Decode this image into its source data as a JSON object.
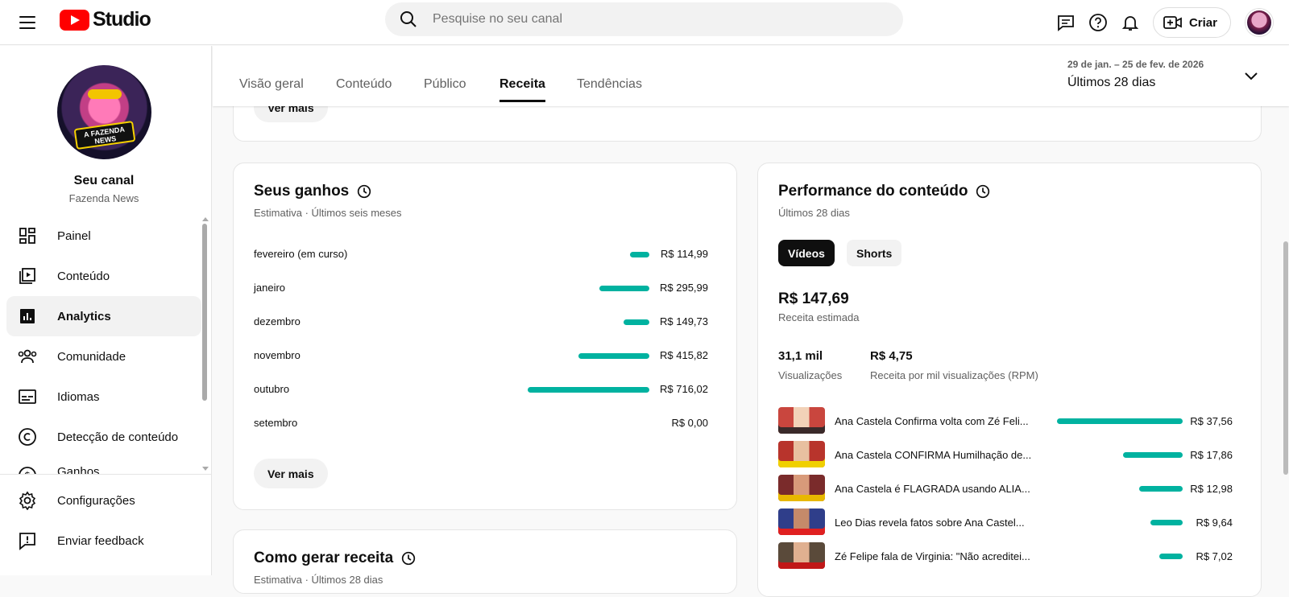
{
  "header": {
    "logo_text": "Studio",
    "search_placeholder": "Pesquise no seu canal",
    "create_label": "Criar",
    "icons": [
      "menu-icon",
      "youtube-logo-icon",
      "search-icon",
      "feedback-chat-icon",
      "help-icon",
      "notifications-icon",
      "create-video-icon"
    ]
  },
  "sidebar": {
    "channel_name": "Seu canal",
    "channel_handle": "Fazenda News",
    "avatar_text": "A FAZENDA NEWS",
    "items": [
      {
        "label": "Painel",
        "icon": "dashboard-icon"
      },
      {
        "label": "Conteúdo",
        "icon": "content-icon"
      },
      {
        "label": "Analytics",
        "icon": "analytics-icon",
        "active": true
      },
      {
        "label": "Comunidade",
        "icon": "community-icon"
      },
      {
        "label": "Idiomas",
        "icon": "subtitles-icon"
      },
      {
        "label": "Detecção de conteúdo",
        "icon": "copyright-icon"
      },
      {
        "label": "Ganhos",
        "icon": "earn-icon"
      }
    ],
    "bottom_items": [
      {
        "label": "Configurações",
        "icon": "settings-icon"
      },
      {
        "label": "Enviar feedback",
        "icon": "feedback-icon"
      }
    ]
  },
  "tabs": {
    "items": [
      "Visão geral",
      "Conteúdo",
      "Público",
      "Receita",
      "Tendências"
    ],
    "active": "Receita"
  },
  "date_range": {
    "range": "29 de jan. – 25 de fev. de 2026",
    "label": "Últimos 28 dias"
  },
  "top_card": {
    "button": "Ver mais"
  },
  "earnings": {
    "title": "Seus ganhos",
    "subtitle": "Estimativa · Últimos seis meses",
    "rows": [
      {
        "month": "fevereiro (em curso)",
        "value_text": "R$ 114,99",
        "value": 114.99
      },
      {
        "month": "janeiro",
        "value_text": "R$ 295,99",
        "value": 295.99
      },
      {
        "month": "dezembro",
        "value_text": "R$ 149,73",
        "value": 149.73
      },
      {
        "month": "novembro",
        "value_text": "R$ 415,82",
        "value": 415.82
      },
      {
        "month": "outubro",
        "value_text": "R$ 716,02",
        "value": 716.02
      },
      {
        "month": "setembro",
        "value_text": "R$ 0,00",
        "value": 0
      }
    ],
    "button": "Ver mais"
  },
  "how_to": {
    "title": "Como gerar receita",
    "subtitle": "Estimativa · Últimos 28 dias"
  },
  "performance": {
    "title": "Performance do conteúdo",
    "subtitle": "Últimos 28 dias",
    "toggle": [
      "Vídeos",
      "Shorts"
    ],
    "active_toggle": "Vídeos",
    "revenue": "R$ 147,69",
    "revenue_label": "Receita estimada",
    "views": "31,1 mil",
    "views_label": "Visualizações",
    "rpm": "R$ 4,75",
    "rpm_label": "Receita por mil visualizações (RPM)",
    "videos": [
      {
        "title": "Ana Castela Confirma volta com Zé Feli...",
        "value_text": "R$ 37,56",
        "value": 37.56
      },
      {
        "title": "Ana Castela CONFIRMA Humilhação de...",
        "value_text": "R$ 17,86",
        "value": 17.86
      },
      {
        "title": "Ana Castela é FLAGRADA usando ALIA...",
        "value_text": "R$ 12,98",
        "value": 12.98
      },
      {
        "title": "Leo Dias revela fatos sobre Ana Castel...",
        "value_text": "R$ 9,64",
        "value": 9.64
      },
      {
        "title": "Zé Felipe fala de Virginia: \"Não acreditei...",
        "value_text": "R$ 7,02",
        "value": 7.02
      }
    ]
  },
  "colors": {
    "accent": "#00b2a0",
    "brand_red": "#ff0000"
  }
}
